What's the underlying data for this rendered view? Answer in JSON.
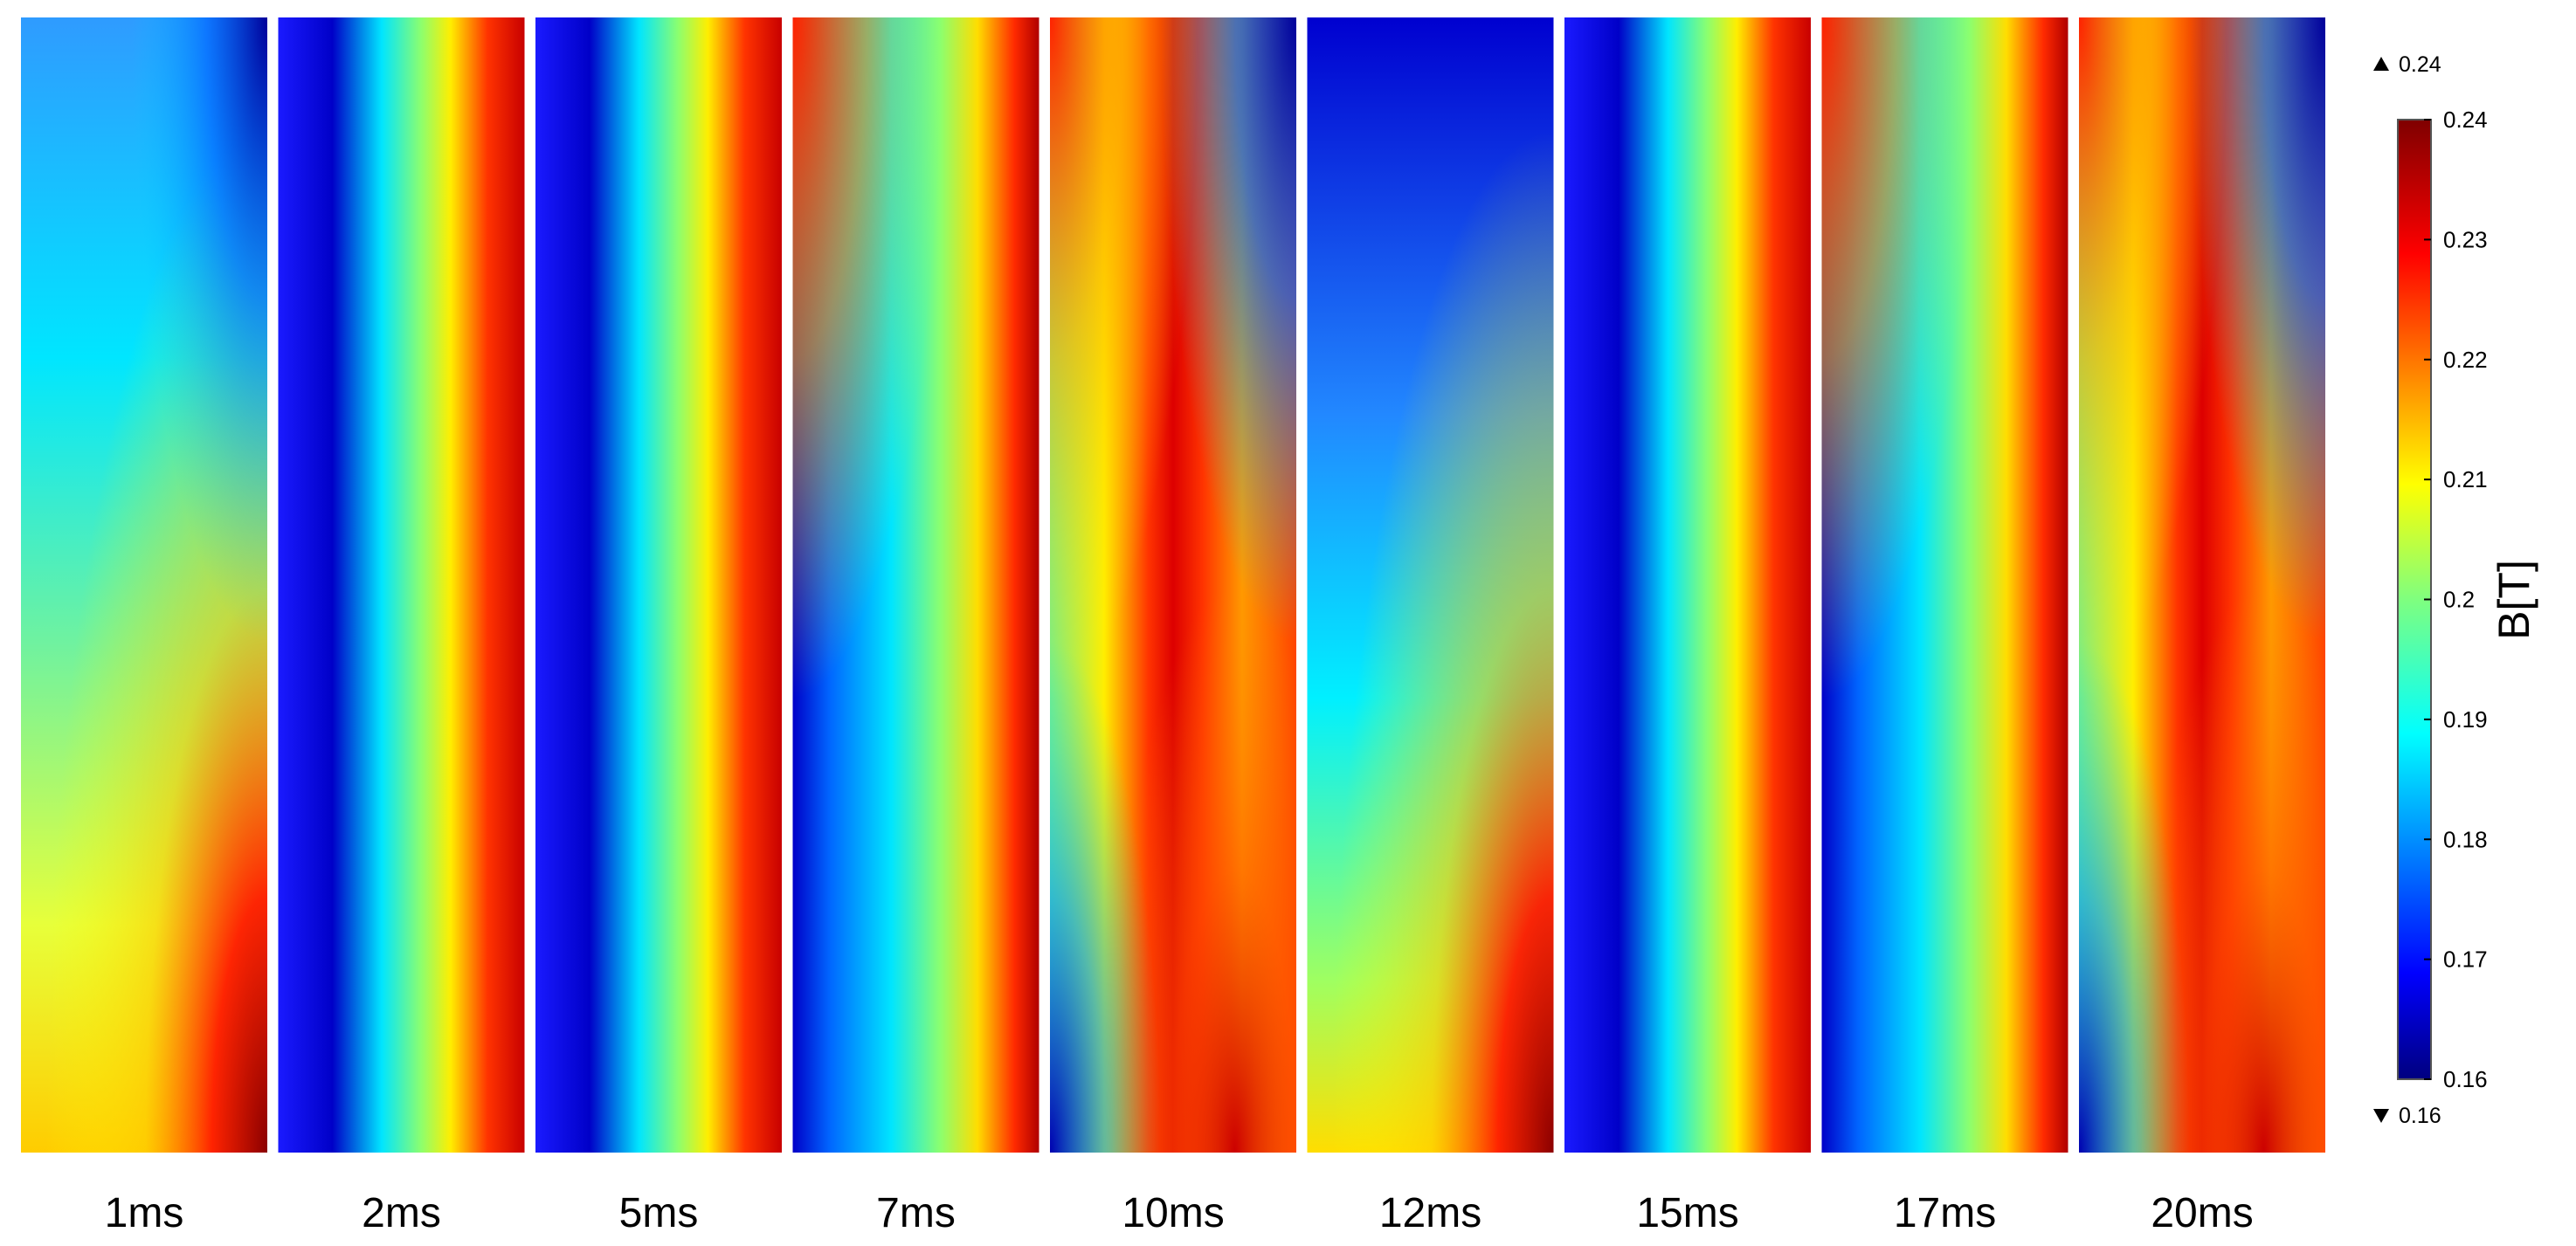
{
  "chart_data": {
    "type": "heatmap",
    "title": "",
    "xlabel": "",
    "ylabel": "",
    "panels": [
      {
        "label": "1ms",
        "pattern": "diagonal"
      },
      {
        "label": "2ms",
        "pattern": "bands"
      },
      {
        "label": "5ms",
        "pattern": "bands"
      },
      {
        "label": "7ms",
        "pattern": "bands-reversed"
      },
      {
        "label": "10ms",
        "pattern": "double"
      },
      {
        "label": "12ms",
        "pattern": "diagonal"
      },
      {
        "label": "15ms",
        "pattern": "bands"
      },
      {
        "label": "17ms",
        "pattern": "bands-reversed"
      },
      {
        "label": "20ms",
        "pattern": "double"
      }
    ],
    "colorbar": {
      "label": "B[T]",
      "colormap": "jet",
      "min": 0.16,
      "max": 0.24,
      "ticks": [
        0.24,
        0.23,
        0.22,
        0.21,
        0.2,
        0.19,
        0.18,
        0.17,
        0.16
      ],
      "max_marker": "0.24",
      "min_marker": "0.16"
    }
  }
}
